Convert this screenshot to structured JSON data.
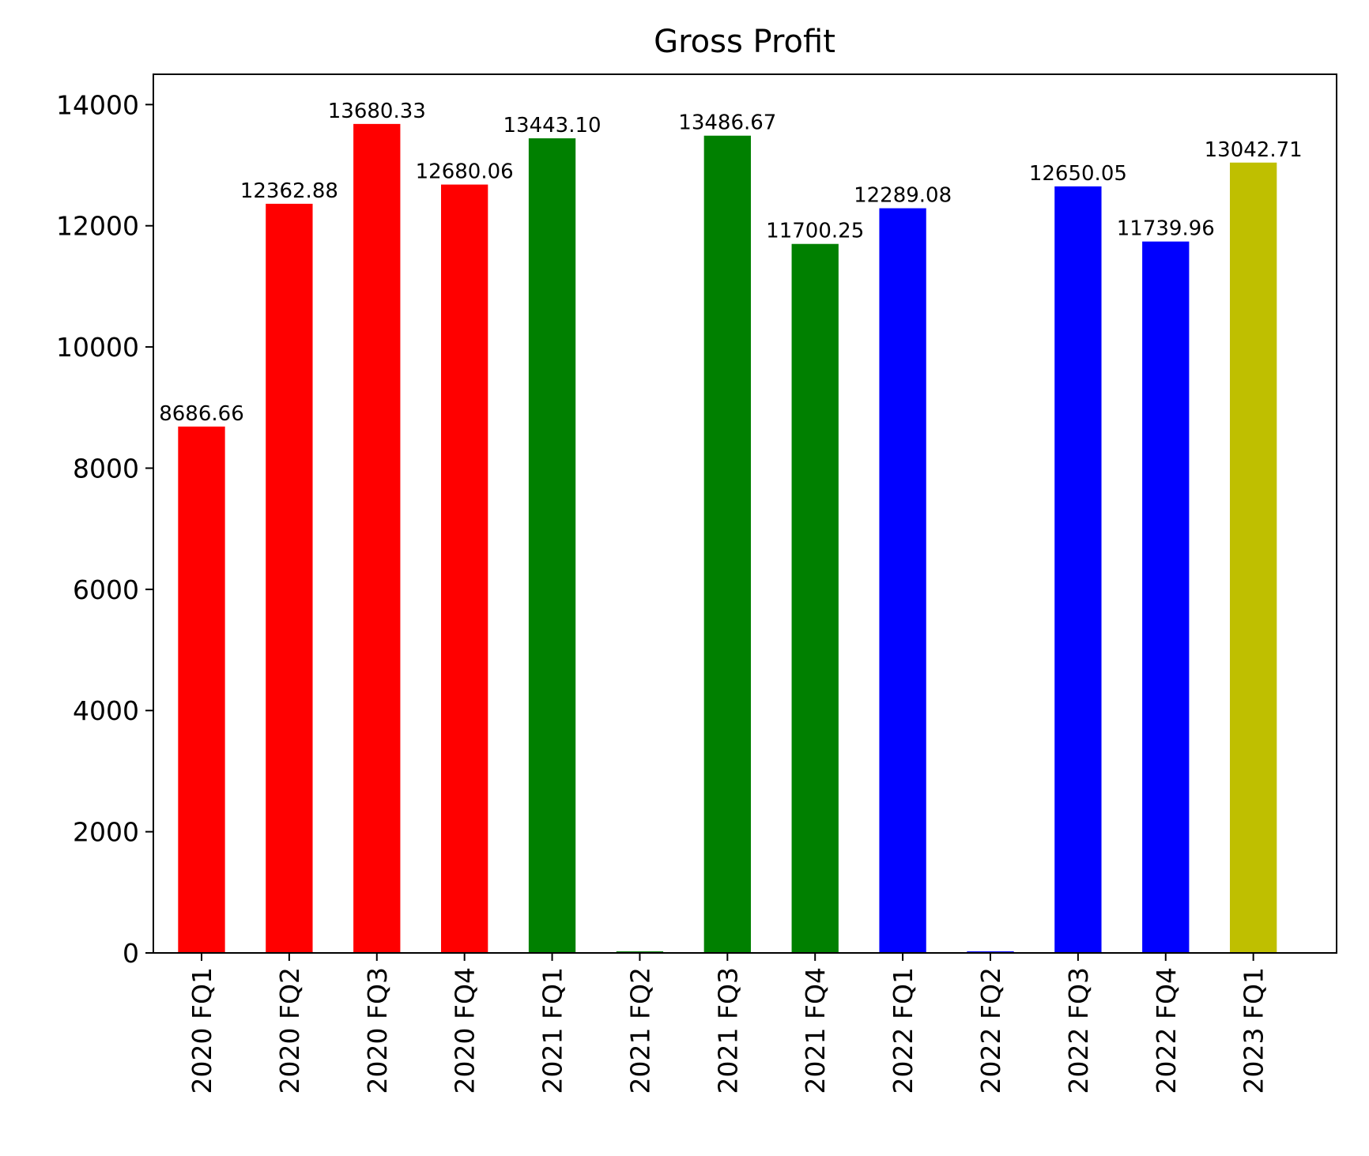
{
  "chart_data": {
    "type": "bar",
    "title": "Gross Profit",
    "xlabel": "",
    "ylabel": "",
    "ylim": [
      0,
      14500
    ],
    "y_ticks": [
      0,
      2000,
      4000,
      6000,
      8000,
      10000,
      12000,
      14000
    ],
    "grid": false,
    "legend": "none",
    "categories": [
      "2020 FQ1",
      "2020 FQ2",
      "2020 FQ3",
      "2020 FQ4",
      "2021 FQ1",
      "2021 FQ2",
      "2021 FQ3",
      "2021 FQ4",
      "2022 FQ1",
      "2022 FQ2",
      "2022 FQ3",
      "2022 FQ4",
      "2023 FQ1"
    ],
    "values": [
      8686.66,
      12362.88,
      13680.33,
      12680.06,
      13443.1,
      0,
      13486.67,
      11700.25,
      12289.08,
      0,
      12650.05,
      11739.96,
      13042.71
    ],
    "value_labels": [
      "8686.66",
      "12362.88",
      "13680.33",
      "12680.06",
      "13443.10",
      "",
      "13486.67",
      "11700.25",
      "12289.08",
      "",
      "12650.05",
      "11739.96",
      "13042.71"
    ],
    "colors": [
      "#ff0000",
      "#ff0000",
      "#ff0000",
      "#ff0000",
      "#008000",
      "#008000",
      "#008000",
      "#008000",
      "#0000ff",
      "#0000ff",
      "#0000ff",
      "#0000ff",
      "#bfbf00"
    ]
  }
}
